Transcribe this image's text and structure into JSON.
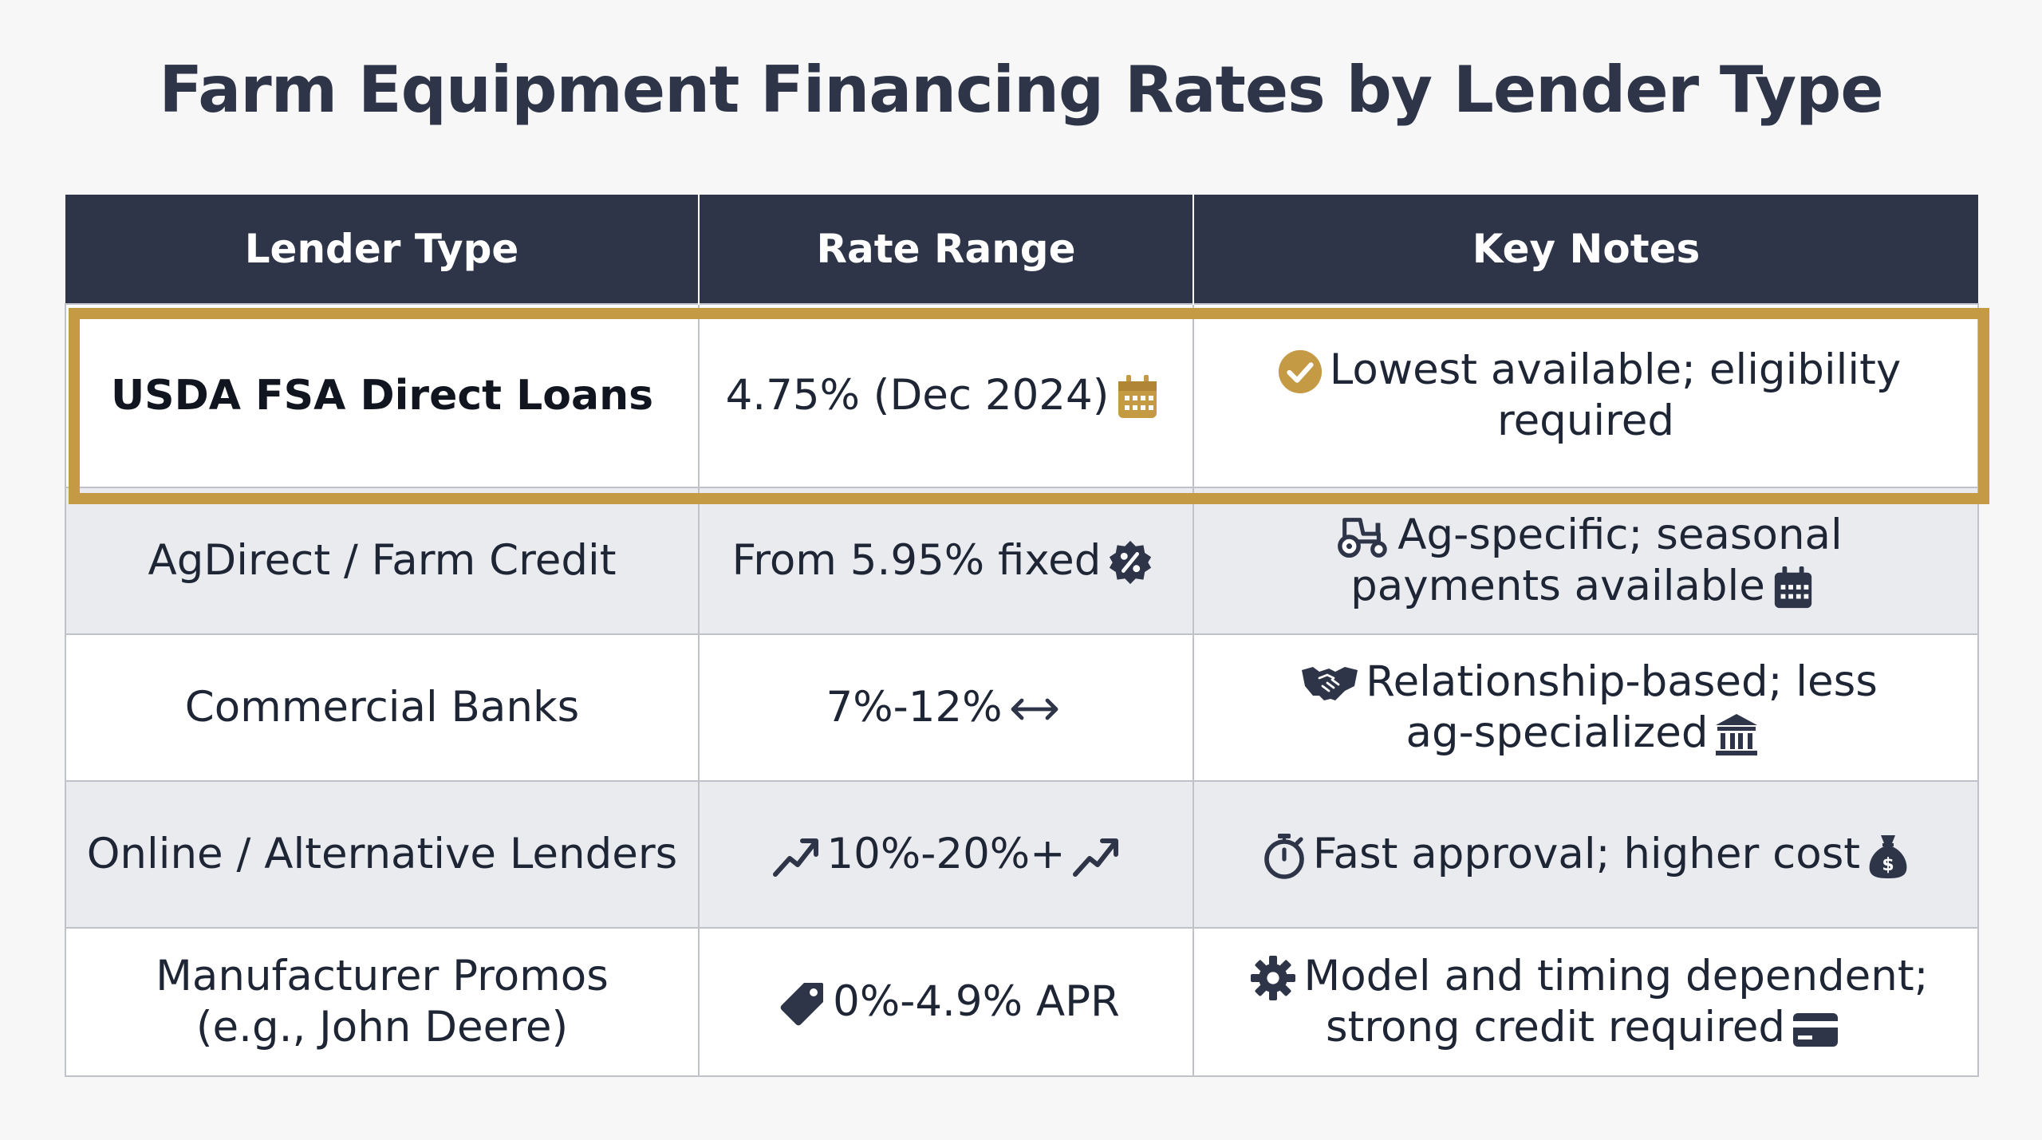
{
  "title": "Farm Equipment Financing Rates by Lender Type",
  "table": {
    "headers": [
      "Lender Type",
      "Rate Range",
      "Key Notes"
    ],
    "rows": [
      {
        "lender": "USDA FSA Direct Loans",
        "rate": "4.75% (Dec 2024)",
        "rate_icon": "calendar-icon",
        "notes_line1": "Lowest available; eligibility",
        "notes_line2": "required",
        "notes_icon": "check-circle-icon",
        "highlighted": true
      },
      {
        "lender": "AgDirect / Farm Credit",
        "rate": "From 5.95% fixed",
        "rate_icon": "percent-badge-icon",
        "notes_line1": "Ag-specific; seasonal",
        "notes_line2": "payments available",
        "notes_icon": "tractor-icon",
        "notes_trailing_icon": "calendar-icon"
      },
      {
        "lender": "Commercial Banks",
        "rate": "7%-12%",
        "rate_icon": "double-arrow-icon",
        "notes_line1": "Relationship-based; less",
        "notes_line2": "ag-specialized",
        "notes_icon": "handshake-icon",
        "notes_trailing_icon": "bank-icon"
      },
      {
        "lender": "Online / Alternative Lenders",
        "rate": "10%-20%+",
        "rate_icon": "trending-up-icon",
        "notes_line1": "Fast approval; higher cost",
        "notes_icon": "stopwatch-icon",
        "notes_trailing_icon": "money-bag-icon"
      },
      {
        "lender_line1": "Manufacturer Promos",
        "lender_line2": "(e.g., John Deere)",
        "rate": "0%-4.9% APR",
        "rate_icon": "tag-icon",
        "notes_line1": "Model and timing dependent;",
        "notes_line2": "strong credit required",
        "notes_icon": "gear-icon",
        "notes_trailing_icon": "credit-card-icon"
      }
    ]
  },
  "colors": {
    "header_bg": "#2e3548",
    "highlight_border": "#c59a45",
    "row_alt_bg": "#e9ebee",
    "text": "#1e2535"
  }
}
